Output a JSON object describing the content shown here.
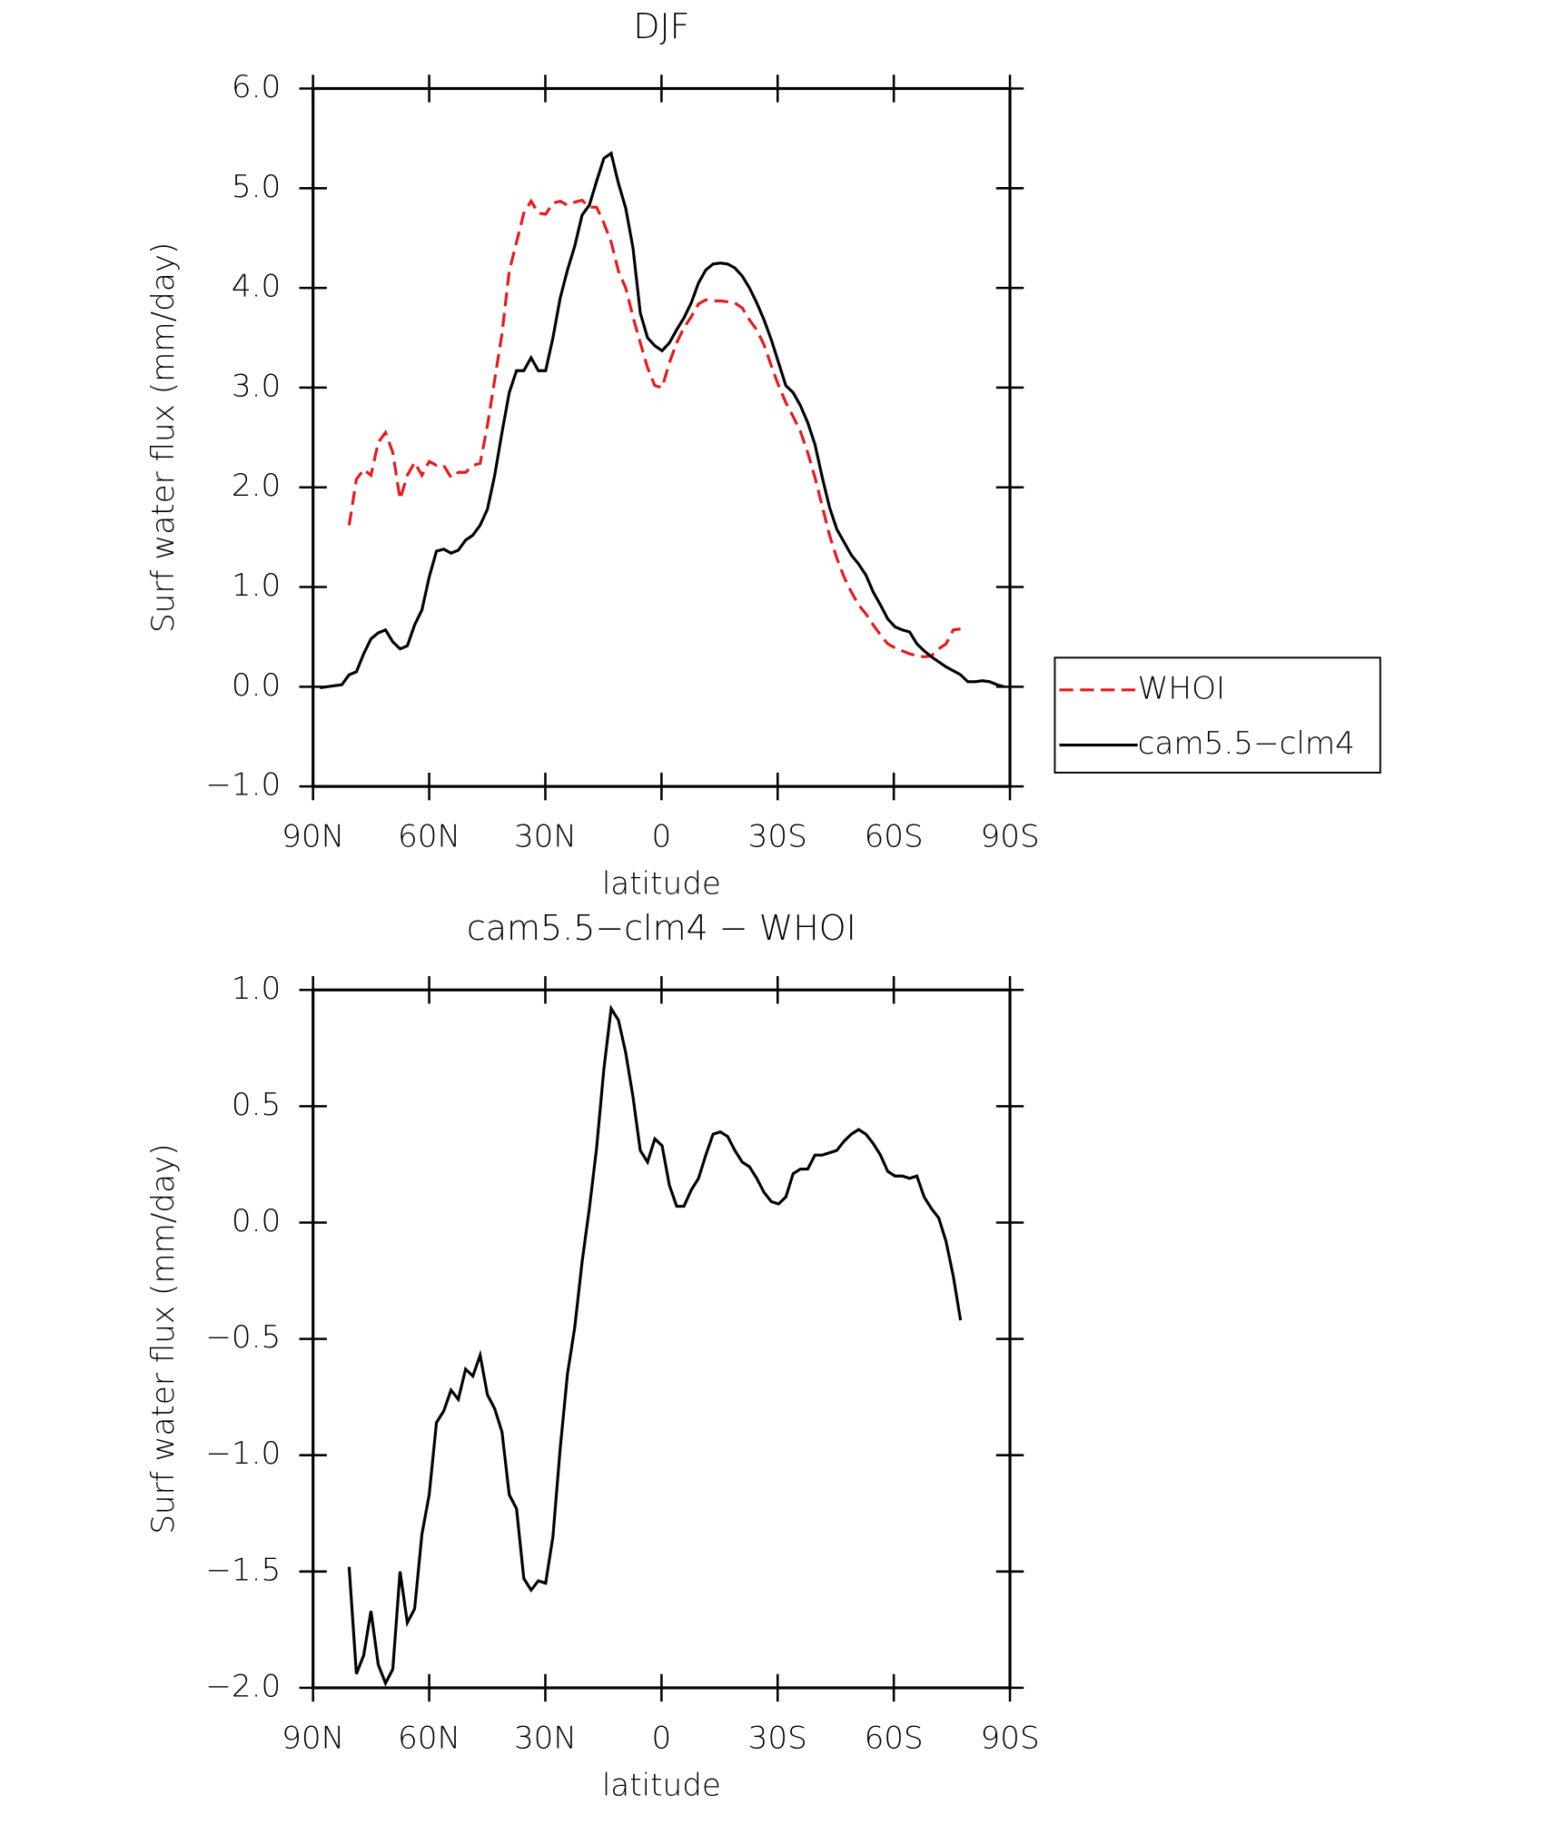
{
  "chart_data": [
    {
      "type": "line",
      "title": "DJF",
      "xlabel": "latitude",
      "ylabel": "Surf water flux (mm/day)",
      "x": [
        88.2,
        86.32,
        84.44,
        82.56,
        80.68,
        78.8,
        76.92,
        75.04,
        73.16,
        71.28,
        69.4,
        67.52,
        65.64,
        63.76,
        61.88,
        60,
        58.12,
        56.24,
        54.36,
        52.48,
        50.6,
        48.72,
        46.84,
        44.96,
        43.08,
        41.2,
        39.32,
        37.44,
        35.56,
        33.68,
        31.8,
        29.92,
        28.04,
        26.16,
        24.28,
        22.4,
        20.52,
        18.64,
        16.76,
        14.88,
        13,
        11.12,
        9.24,
        7.36,
        5.48,
        3.6,
        1.72,
        -0.16,
        -2.04,
        -3.92,
        -5.8,
        -7.68,
        -9.56,
        -11.44,
        -13.32,
        -15.2,
        -17.08,
        -18.96,
        -20.84,
        -22.72,
        -24.6,
        -26.48,
        -28.36,
        -30.24,
        -32.12,
        -34,
        -35.88,
        -37.76,
        -39.64,
        -41.52,
        -43.4,
        -45.28,
        -47.16,
        -49.04,
        -50.92,
        -52.8,
        -54.68,
        -56.56,
        -58.44,
        -60.32,
        -62.2,
        -64.08,
        -65.96,
        -67.84,
        -69.72,
        -71.6,
        -73.48,
        -75.36,
        -77.24,
        -79.12,
        -81,
        -82.88,
        -84.76,
        -86.64,
        -88.52
      ],
      "series": [
        {
          "name": "WHOI",
          "color": "#e8181c",
          "linestyle": "dashed",
          "values": [
            null,
            null,
            null,
            null,
            1.62,
            2.08,
            2.18,
            2.12,
            2.45,
            2.55,
            2.35,
            1.88,
            2.12,
            2.25,
            2.12,
            2.26,
            2.22,
            2.22,
            2.1,
            2.15,
            2.15,
            2.22,
            2.24,
            2.62,
            3.08,
            3.54,
            4.17,
            4.46,
            4.75,
            4.87,
            4.75,
            4.74,
            4.85,
            4.87,
            4.83,
            4.86,
            4.88,
            4.81,
            4.81,
            4.65,
            4.46,
            4.17,
            4.0,
            3.71,
            3.45,
            3.2,
            3.02,
            3.0,
            3.25,
            3.45,
            3.6,
            3.71,
            3.84,
            3.88,
            3.87,
            3.87,
            3.86,
            3.85,
            3.8,
            3.68,
            3.58,
            3.43,
            3.22,
            3.02,
            2.85,
            2.71,
            2.56,
            2.35,
            2.1,
            1.81,
            1.52,
            1.29,
            1.1,
            0.95,
            0.82,
            0.73,
            0.62,
            0.52,
            0.43,
            0.39,
            0.36,
            0.33,
            0.31,
            0.3,
            0.31,
            0.38,
            0.43,
            0.57,
            0.58,
            null,
            null,
            null,
            null,
            null,
            null
          ]
        },
        {
          "name": "cam5.5−clm4",
          "color": "#000000",
          "linestyle": "solid",
          "values": [
            -0.01,
            0.0,
            0.01,
            0.02,
            0.12,
            0.15,
            0.33,
            0.48,
            0.54,
            0.57,
            0.45,
            0.38,
            0.41,
            0.62,
            0.77,
            1.1,
            1.36,
            1.38,
            1.34,
            1.37,
            1.47,
            1.52,
            1.62,
            1.78,
            2.12,
            2.55,
            2.95,
            3.17,
            3.17,
            3.3,
            3.17,
            3.17,
            3.5,
            3.9,
            4.18,
            4.42,
            4.73,
            4.83,
            5.07,
            5.3,
            5.35,
            5.05,
            4.8,
            4.4,
            3.75,
            3.5,
            3.42,
            3.37,
            3.45,
            3.58,
            3.7,
            3.85,
            4.05,
            4.18,
            4.24,
            4.25,
            4.24,
            4.2,
            4.12,
            4.0,
            3.85,
            3.68,
            3.48,
            3.25,
            3.02,
            2.95,
            2.82,
            2.65,
            2.43,
            2.1,
            1.8,
            1.58,
            1.45,
            1.32,
            1.23,
            1.12,
            0.95,
            0.82,
            0.68,
            0.6,
            0.57,
            0.55,
            0.43,
            0.36,
            0.3,
            0.25,
            0.2,
            0.16,
            0.12,
            0.05,
            0.05,
            0.06,
            0.05,
            0.02,
            0.0
          ]
        }
      ],
      "xlim": [
        90,
        -90
      ],
      "xticks": [
        {
          "value": 90,
          "label": "90N"
        },
        {
          "value": 60,
          "label": "60N"
        },
        {
          "value": 30,
          "label": "30N"
        },
        0,
        {
          "value": -30,
          "label": "30S"
        },
        {
          "value": -60,
          "label": "60S"
        },
        {
          "value": -90,
          "label": "90S"
        }
      ],
      "ylim": [
        -1,
        6
      ],
      "yticks": [
        {
          "value": -1,
          "label": "−1.0"
        },
        {
          "value": 0,
          "label": "0.0"
        },
        {
          "value": 1,
          "label": "1.0"
        },
        {
          "value": 2,
          "label": "2.0"
        },
        {
          "value": 3,
          "label": "3.0"
        },
        {
          "value": 4,
          "label": "4.0"
        },
        {
          "value": 5,
          "label": "5.0"
        },
        {
          "value": 6,
          "label": "6.0"
        }
      ],
      "legend": "outside-right"
    },
    {
      "type": "line",
      "title": "cam5.5−clm4 − WHOI",
      "xlabel": "latitude",
      "ylabel": "Surf water flux (mm/day)",
      "x": [
        88.2,
        86.32,
        84.44,
        82.56,
        80.68,
        78.8,
        76.92,
        75.04,
        73.16,
        71.28,
        69.4,
        67.52,
        65.64,
        63.76,
        61.88,
        60,
        58.12,
        56.24,
        54.36,
        52.48,
        50.6,
        48.72,
        46.84,
        44.96,
        43.08,
        41.2,
        39.32,
        37.44,
        35.56,
        33.68,
        31.8,
        29.92,
        28.04,
        26.16,
        24.28,
        22.4,
        20.52,
        18.64,
        16.76,
        14.88,
        13,
        11.12,
        9.24,
        7.36,
        5.48,
        3.6,
        1.72,
        -0.16,
        -2.04,
        -3.92,
        -5.8,
        -7.68,
        -9.56,
        -11.44,
        -13.32,
        -15.2,
        -17.08,
        -18.96,
        -20.84,
        -22.72,
        -24.6,
        -26.48,
        -28.36,
        -30.24,
        -32.12,
        -34,
        -35.88,
        -37.76,
        -39.64,
        -41.52,
        -43.4,
        -45.28,
        -47.16,
        -49.04,
        -50.92,
        -52.8,
        -54.68,
        -56.56,
        -58.44,
        -60.32,
        -62.2,
        -64.08,
        -65.96,
        -67.84,
        -69.72,
        -71.6,
        -73.48,
        -75.36,
        -77.24,
        -79.12,
        -81,
        -82.88,
        -84.76,
        -86.64,
        -88.52
      ],
      "series": [
        {
          "color": "#000000",
          "linestyle": "solid",
          "values": [
            null,
            null,
            null,
            null,
            -1.48,
            -1.94,
            -1.86,
            -1.67,
            -1.9,
            -1.98,
            -1.92,
            -1.5,
            -1.72,
            -1.66,
            -1.34,
            -1.17,
            -0.86,
            -0.81,
            -0.72,
            -0.76,
            -0.63,
            -0.66,
            -0.57,
            -0.74,
            -0.8,
            -0.9,
            -1.17,
            -1.23,
            -1.53,
            -1.58,
            -1.54,
            -1.55,
            -1.35,
            -0.97,
            -0.65,
            -0.45,
            -0.17,
            0.06,
            0.32,
            0.66,
            0.92,
            0.87,
            0.73,
            0.54,
            0.31,
            0.26,
            0.36,
            0.33,
            0.16,
            0.07,
            0.07,
            0.14,
            0.19,
            0.29,
            0.38,
            0.39,
            0.37,
            0.31,
            0.26,
            0.24,
            0.19,
            0.13,
            0.09,
            0.08,
            0.11,
            0.21,
            0.23,
            0.23,
            0.29,
            0.29,
            0.3,
            0.31,
            0.35,
            0.38,
            0.4,
            0.38,
            0.34,
            0.29,
            0.22,
            0.2,
            0.2,
            0.19,
            0.2,
            0.11,
            0.06,
            0.02,
            -0.08,
            -0.23,
            -0.42,
            null,
            null,
            null,
            null,
            null,
            null
          ]
        }
      ],
      "xlim": [
        90,
        -90
      ],
      "xticks": [
        {
          "value": 90,
          "label": "90N"
        },
        {
          "value": 60,
          "label": "60N"
        },
        {
          "value": 30,
          "label": "30N"
        },
        0,
        {
          "value": -30,
          "label": "30S"
        },
        {
          "value": -60,
          "label": "60S"
        },
        {
          "value": -90,
          "label": "90S"
        }
      ],
      "ylim": [
        -2,
        1
      ],
      "yticks": [
        {
          "value": -2,
          "label": "−2.0"
        },
        {
          "value": -1.5,
          "label": "−1.5"
        },
        {
          "value": -1,
          "label": "−1.0"
        },
        {
          "value": -0.5,
          "label": "−0.5"
        },
        {
          "value": 0,
          "label": "0.0"
        },
        {
          "value": 0.5,
          "label": "0.5"
        },
        {
          "value": 1,
          "label": "1.0"
        }
      ]
    }
  ]
}
